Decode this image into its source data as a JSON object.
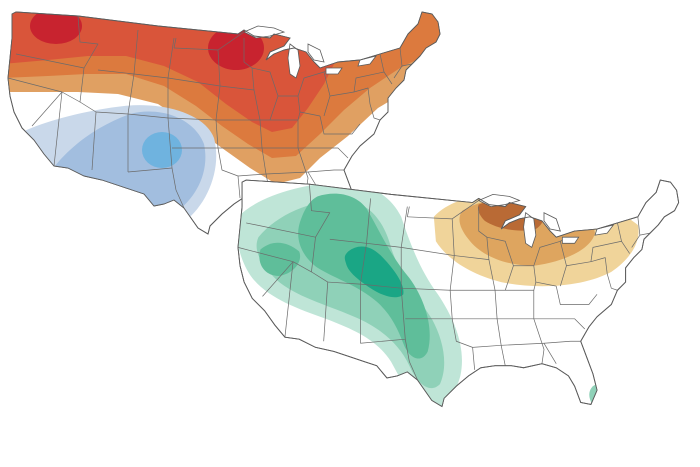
{
  "figure": {
    "description_visible_text": "",
    "maps": [
      {
        "id": "temperature-outlook",
        "categories": [
          {
            "level": "warm-1",
            "color": "#e9c98f"
          },
          {
            "level": "warm-2",
            "color": "#e0a062"
          },
          {
            "level": "warm-3",
            "color": "#dc7a3e"
          },
          {
            "level": "warm-4",
            "color": "#d9553a"
          },
          {
            "level": "warm-5",
            "color": "#c8232f"
          },
          {
            "level": "cool-1",
            "color": "#c9d8ea"
          },
          {
            "level": "cool-2",
            "color": "#a2bedf"
          },
          {
            "level": "cool-3",
            "color": "#6fb3df"
          }
        ]
      },
      {
        "id": "precipitation-outlook",
        "categories": [
          {
            "level": "wet-1",
            "color": "#bfe5d7"
          },
          {
            "level": "wet-2",
            "color": "#8fd1b8"
          },
          {
            "level": "wet-3",
            "color": "#5fbe9a"
          },
          {
            "level": "wet-4",
            "color": "#1aa685"
          },
          {
            "level": "dry-1",
            "color": "#f0d49a"
          },
          {
            "level": "dry-2",
            "color": "#dea55f"
          },
          {
            "level": "dry-3",
            "color": "#b96a35"
          }
        ]
      }
    ]
  }
}
